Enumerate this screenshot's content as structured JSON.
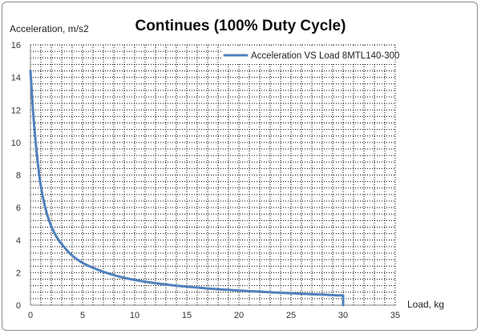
{
  "chart_data": {
    "type": "line",
    "title": "Continues (100% Duty Cycle)",
    "xlabel": "Load, kg",
    "ylabel": "Acceleration, m/s2",
    "xlim": [
      0,
      35
    ],
    "ylim": [
      0,
      16
    ],
    "x_ticks": [
      0,
      5,
      10,
      15,
      20,
      25,
      30,
      35
    ],
    "y_ticks": [
      0,
      2,
      4,
      6,
      8,
      10,
      12,
      14,
      16
    ],
    "grid": true,
    "legend_position": "top-right",
    "series_color": "#4f81bd",
    "series": [
      {
        "name": "Acceleration VS Load 8MTL140-300",
        "x": [
          0,
          0.25,
          0.5,
          0.75,
          1,
          1.5,
          2,
          2.5,
          3,
          4,
          5,
          6,
          7,
          8,
          9,
          10,
          12,
          14,
          16,
          18,
          20,
          22,
          24,
          26,
          28,
          30,
          30
        ],
        "y": [
          14.4,
          11.9,
          10.0,
          8.5,
          7.3,
          5.8,
          4.85,
          4.2,
          3.75,
          3.05,
          2.6,
          2.3,
          2.05,
          1.85,
          1.68,
          1.55,
          1.35,
          1.2,
          1.08,
          0.98,
          0.9,
          0.83,
          0.76,
          0.7,
          0.65,
          0.6,
          0.0
        ]
      }
    ]
  }
}
